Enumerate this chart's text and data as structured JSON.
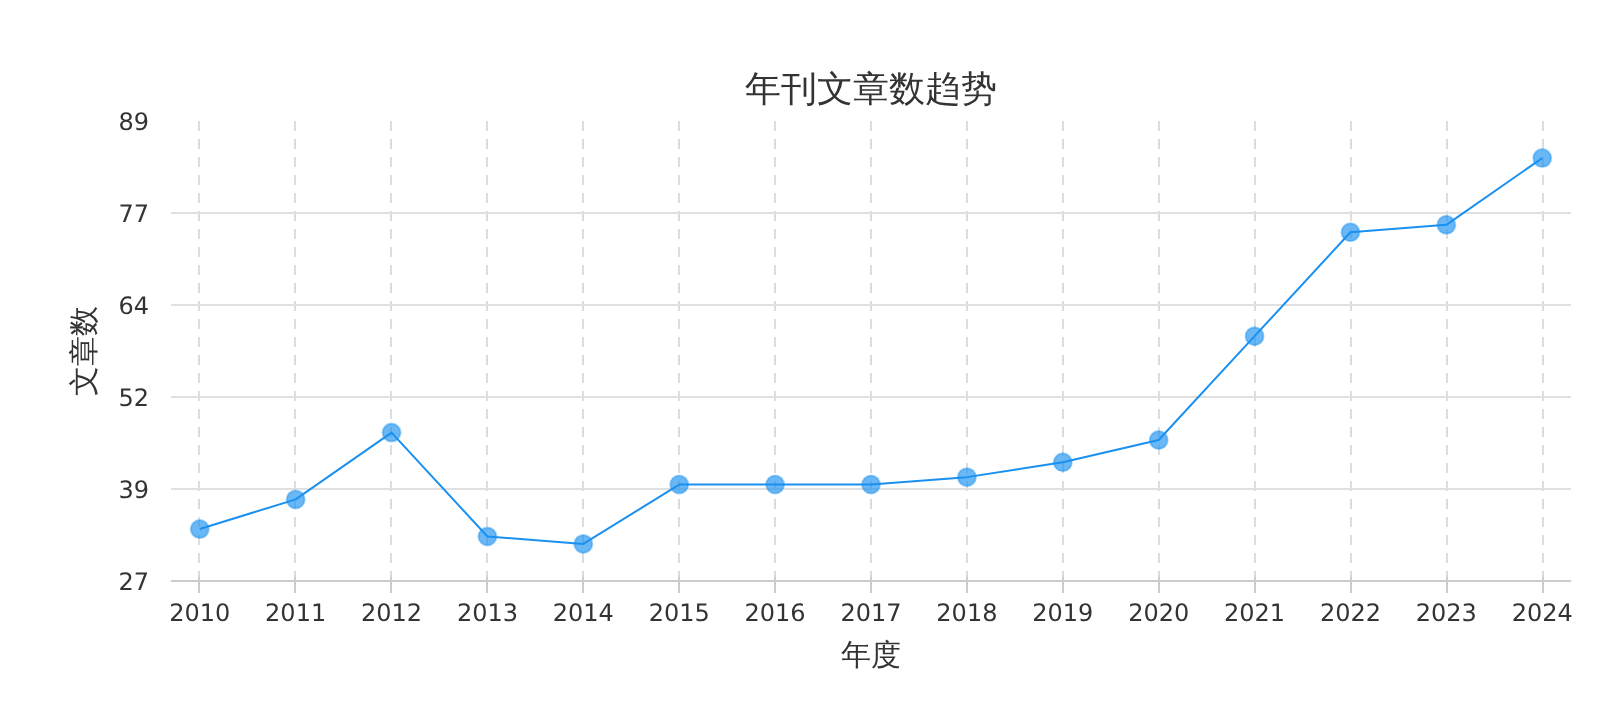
{
  "chart_data": {
    "type": "line",
    "title": "年刊文章数趋势",
    "xlabel": "年度",
    "ylabel": "文章数",
    "categories": [
      "2010",
      "2011",
      "2012",
      "2013",
      "2014",
      "2015",
      "2016",
      "2017",
      "2018",
      "2019",
      "2020",
      "2021",
      "2022",
      "2023",
      "2024"
    ],
    "series": [
      {
        "color": "#1a90f0",
        "values": [
          34,
          38,
          47,
          33,
          32,
          40,
          40,
          40,
          41,
          43,
          46,
          60,
          74,
          75,
          84
        ]
      }
    ],
    "ylim": [
      27,
      89
    ],
    "yticks": [
      27,
      {
        "value": 39.4,
        "label": "39"
      },
      {
        "value": 51.8,
        "label": "52"
      },
      {
        "value": 64.2,
        "label": "64"
      },
      {
        "value": 76.6,
        "label": "77"
      },
      89
    ],
    "grid": true,
    "marker": "circle",
    "line_style": "solid"
  }
}
